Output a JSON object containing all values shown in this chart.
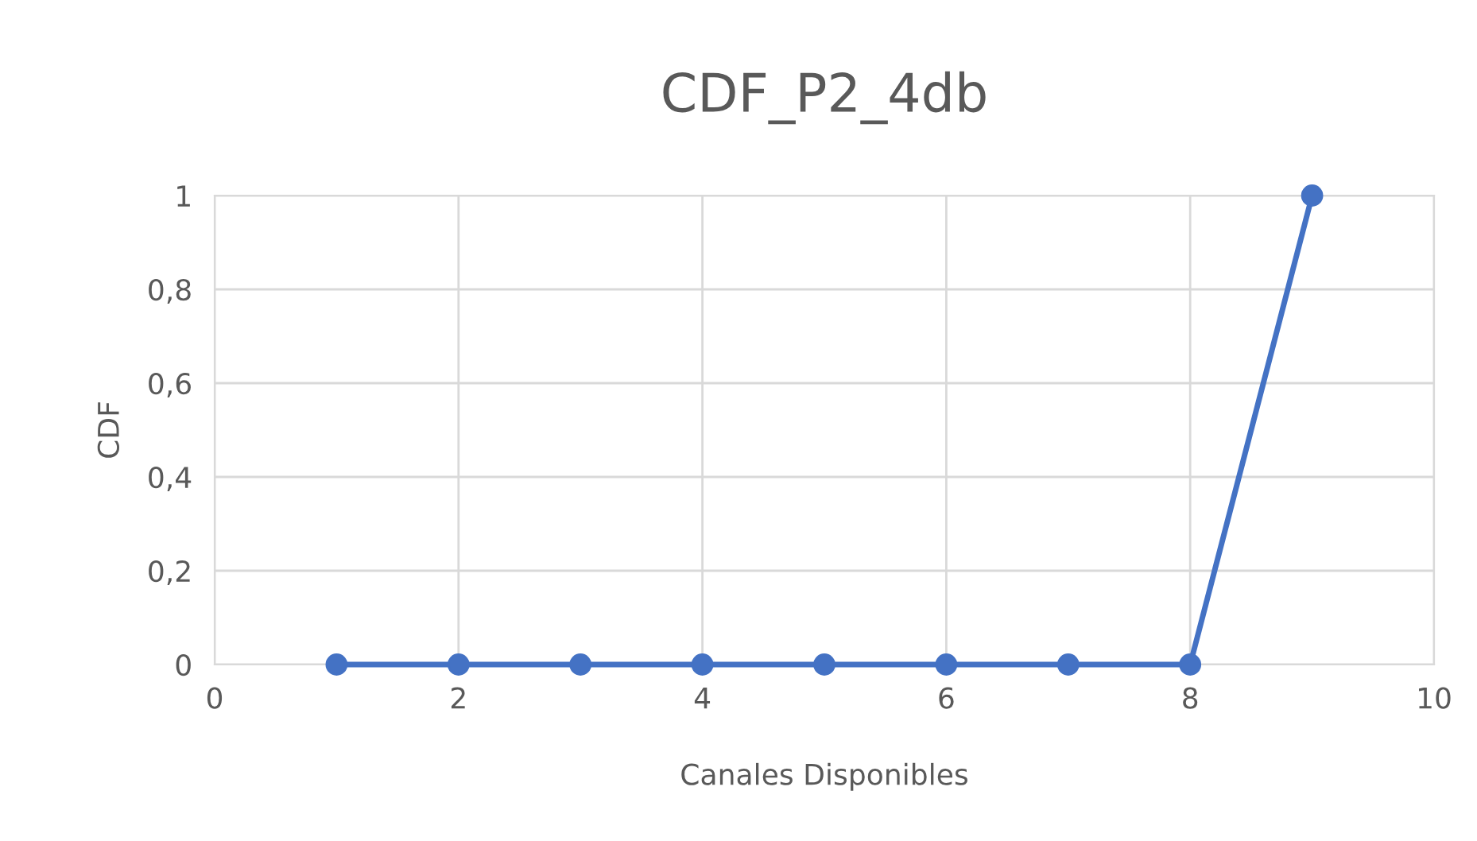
{
  "chart_data": {
    "type": "line",
    "title": "CDF_P2_4db",
    "xlabel": "Canales Disponibles",
    "ylabel": "CDF",
    "x": [
      1,
      2,
      3,
      4,
      5,
      6,
      7,
      8,
      9
    ],
    "series": [
      {
        "color": "#4472c4",
        "values": [
          0,
          0,
          0,
          0,
          0,
          0,
          0,
          0,
          1
        ]
      }
    ],
    "xlim": [
      0,
      10
    ],
    "xticks": [
      0,
      2,
      4,
      6,
      8,
      10
    ],
    "ylim": [
      0,
      1
    ],
    "yticks": [
      0,
      {
        "value": 0.2,
        "label": "0,2"
      },
      {
        "value": 0.4,
        "label": "0,4"
      },
      {
        "value": 0.6,
        "label": "0,6"
      },
      {
        "value": 0.8,
        "label": "0,8"
      },
      1
    ],
    "grid": true,
    "marker": "circle",
    "line_style": "solid",
    "legend": false
  }
}
